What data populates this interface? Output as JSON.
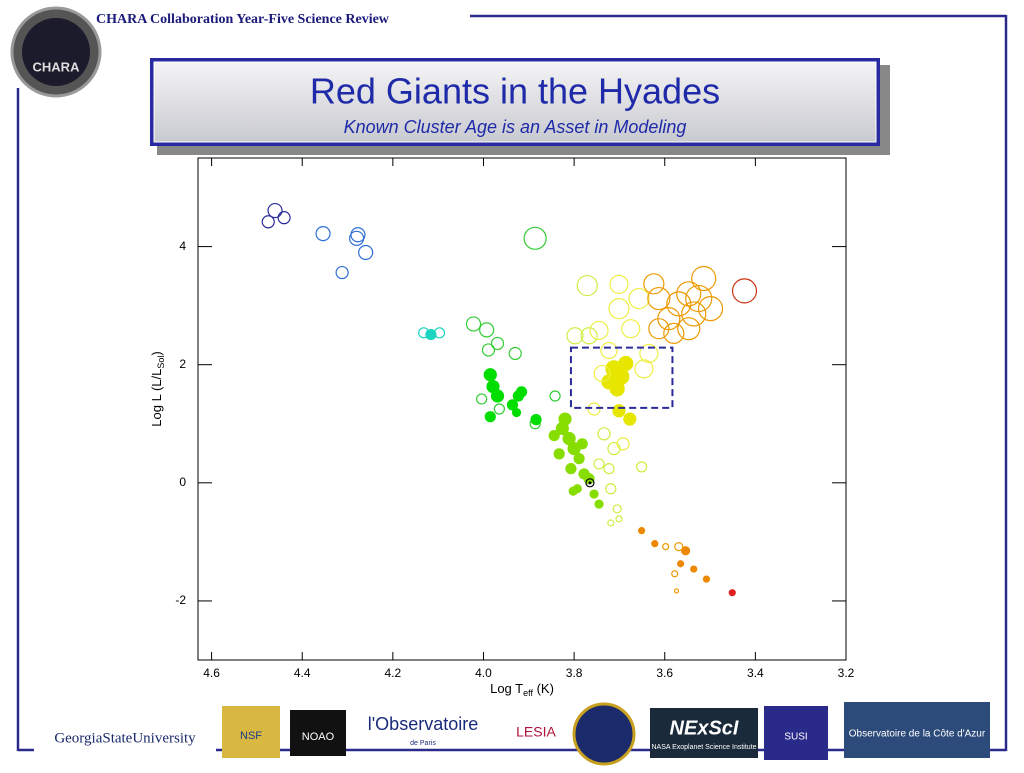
{
  "header": {
    "text": "CHARA Collaboration Year-Five Science Review",
    "logo": "CHARA"
  },
  "title": "Red Giants in the Hyades",
  "subtitle": "Known Cluster Age is an Asset in Modeling",
  "chart_data": {
    "type": "scatter",
    "x_label": {
      "main": "Log T",
      "sub": "eff",
      "rest": " (K)"
    },
    "y_label": {
      "main": "Log L (L/L",
      "sub": "Sol",
      "rest": ")"
    },
    "xlim": [
      4.63,
      3.2
    ],
    "ylim": [
      -3,
      5.5
    ],
    "xticks": [
      4.6,
      4.4,
      4.2,
      {
        "value": 4,
        "label": "4.0"
      },
      3.8,
      3.6,
      3.4,
      3.2
    ],
    "yticks": [
      -2,
      0,
      2,
      4
    ],
    "series": [
      {
        "color": "#2a2a9a",
        "filled": false,
        "x": [
          4.475,
          4.46,
          4.44
        ],
        "values": [
          4.42,
          4.61,
          4.49
        ],
        "sizes": [
          6,
          7,
          6
        ]
      },
      {
        "color": "#2f6fd6",
        "filled": false,
        "x": [
          4.354,
          4.28,
          4.277,
          4.312,
          4.26
        ],
        "values": [
          4.22,
          4.14,
          4.2,
          3.56,
          3.9
        ],
        "sizes": [
          7,
          7,
          7,
          6,
          7
        ]
      },
      {
        "color": "#1ad6c0",
        "filled": false,
        "x": [
          4.132,
          4.097
        ],
        "values": [
          2.54,
          2.54
        ],
        "sizes": [
          5,
          5
        ]
      },
      {
        "color": "#1ad6c0",
        "filled": true,
        "x": [
          4.116
        ],
        "values": [
          2.51
        ],
        "sizes": [
          5
        ]
      },
      {
        "color": "#33cc33",
        "filled": false,
        "x": [
          3.886,
          4.022,
          3.993,
          3.969,
          3.989,
          3.93,
          4.004,
          3.965,
          3.842,
          3.886
        ],
        "values": [
          4.14,
          2.69,
          2.59,
          2.36,
          2.25,
          2.19,
          1.42,
          1.25,
          1.47,
          1.0
        ],
        "sizes": [
          11,
          7,
          7,
          6,
          6,
          6,
          5,
          5,
          5,
          5
        ]
      },
      {
        "color": "#00dd00",
        "filled": true,
        "x": [
          3.985,
          3.979,
          3.969,
          3.985,
          3.936,
          3.923,
          3.916,
          3.927,
          3.884
        ],
        "values": [
          1.83,
          1.63,
          1.47,
          1.12,
          1.32,
          1.47,
          1.54,
          1.19,
          1.07
        ],
        "sizes": [
          6,
          6,
          6,
          5,
          5,
          5,
          5,
          4,
          5
        ]
      },
      {
        "color": "#88dd00",
        "filled": true,
        "x": [
          3.826,
          3.811,
          3.8,
          3.789,
          3.807,
          3.778,
          3.767,
          3.793,
          3.756,
          3.745,
          3.82,
          3.844,
          3.782,
          3.833,
          3.802
        ],
        "values": [
          0.92,
          0.75,
          0.58,
          0.41,
          0.24,
          0.15,
          0.07,
          -0.1,
          -0.19,
          -0.36,
          1.08,
          0.8,
          0.66,
          0.49,
          -0.14
        ],
        "sizes": [
          6,
          6,
          6,
          5,
          5,
          5,
          5,
          4,
          4,
          4,
          6,
          5,
          5,
          5,
          4
        ]
      },
      {
        "color": "#ccee44",
        "filled": false,
        "x": [
          3.734,
          3.712,
          3.723,
          3.719,
          3.705,
          3.701,
          3.719,
          3.651,
          3.745,
          3.767,
          3.798,
          3.771
        ],
        "values": [
          0.83,
          0.58,
          0.24,
          -0.1,
          -0.44,
          -0.61,
          -0.68,
          0.27,
          0.32,
          2.49,
          2.49,
          3.34
        ],
        "sizes": [
          6,
          6,
          5,
          5,
          4,
          3,
          3,
          5,
          5,
          8,
          8,
          10
        ]
      },
      {
        "color": "#e6e600",
        "filled": true,
        "x": [
          3.712,
          3.697,
          3.723,
          3.686,
          3.705,
          3.677,
          3.701
        ],
        "values": [
          1.93,
          1.8,
          1.71,
          2.02,
          1.59,
          1.08,
          1.22
        ],
        "sizes": [
          8,
          8,
          7,
          7,
          7,
          6,
          6
        ]
      },
      {
        "color": "#eeee44",
        "filled": false,
        "x": [
          3.745,
          3.701,
          3.657,
          3.675,
          3.635,
          3.646,
          3.723,
          3.701,
          3.738,
          3.756,
          3.692
        ],
        "values": [
          2.58,
          2.95,
          3.12,
          2.61,
          2.19,
          1.93,
          2.24,
          3.36,
          1.85,
          1.25,
          0.66
        ],
        "sizes": [
          9,
          10,
          10,
          9,
          9,
          9,
          8,
          9,
          8,
          6,
          6
        ]
      },
      {
        "color": "#ee9900",
        "filled": false,
        "x": [
          3.624,
          3.613,
          3.591,
          3.569,
          3.547,
          3.525,
          3.514,
          3.499,
          3.547,
          3.58,
          3.613,
          3.536
        ],
        "values": [
          3.37,
          3.12,
          2.78,
          3.03,
          3.2,
          3.12,
          3.46,
          2.95,
          2.61,
          2.53,
          2.61,
          2.86
        ],
        "sizes": [
          10,
          11,
          11,
          12,
          12,
          13,
          12,
          12,
          11,
          10,
          10,
          12
        ]
      },
      {
        "color": "#cc3311",
        "filled": false,
        "x": [
          3.424
        ],
        "values": [
          3.25
        ],
        "sizes": [
          12
        ]
      },
      {
        "color": "#ee8800",
        "filled": true,
        "x": [
          3.651,
          3.622,
          3.554,
          3.536,
          3.508,
          3.565
        ],
        "values": [
          -0.81,
          -1.03,
          -1.15,
          -1.46,
          -1.63,
          -1.37
        ],
        "sizes": [
          3,
          3,
          4,
          3,
          3,
          3
        ]
      },
      {
        "color": "#ee9900",
        "filled": false,
        "x": [
          3.598,
          3.569,
          3.578,
          3.574
        ],
        "values": [
          -1.08,
          -1.08,
          -1.54,
          -1.83
        ],
        "sizes": [
          3,
          4,
          3,
          2
        ]
      },
      {
        "color": "#dd2222",
        "filled": true,
        "x": [
          3.451
        ],
        "values": [
          -1.86
        ],
        "sizes": [
          3
        ]
      },
      {
        "color": "#000000",
        "filled": false,
        "x": [
          3.765
        ],
        "values": [
          0
        ],
        "sizes": [
          4
        ]
      }
    ],
    "box": {
      "x": [
        3.807,
        3.583
      ],
      "y": [
        1.27,
        2.29
      ],
      "color": "#2a2a9a"
    }
  },
  "logos": [
    "GeorgiaStateUniversity",
    "NSF",
    "NOAO",
    "l'Observatoire",
    "de Paris",
    "LESIA",
    "NExScI",
    "NASA Exoplanet Science Institute",
    "SUSI",
    "Observatoire de la Côte d'Azur"
  ]
}
